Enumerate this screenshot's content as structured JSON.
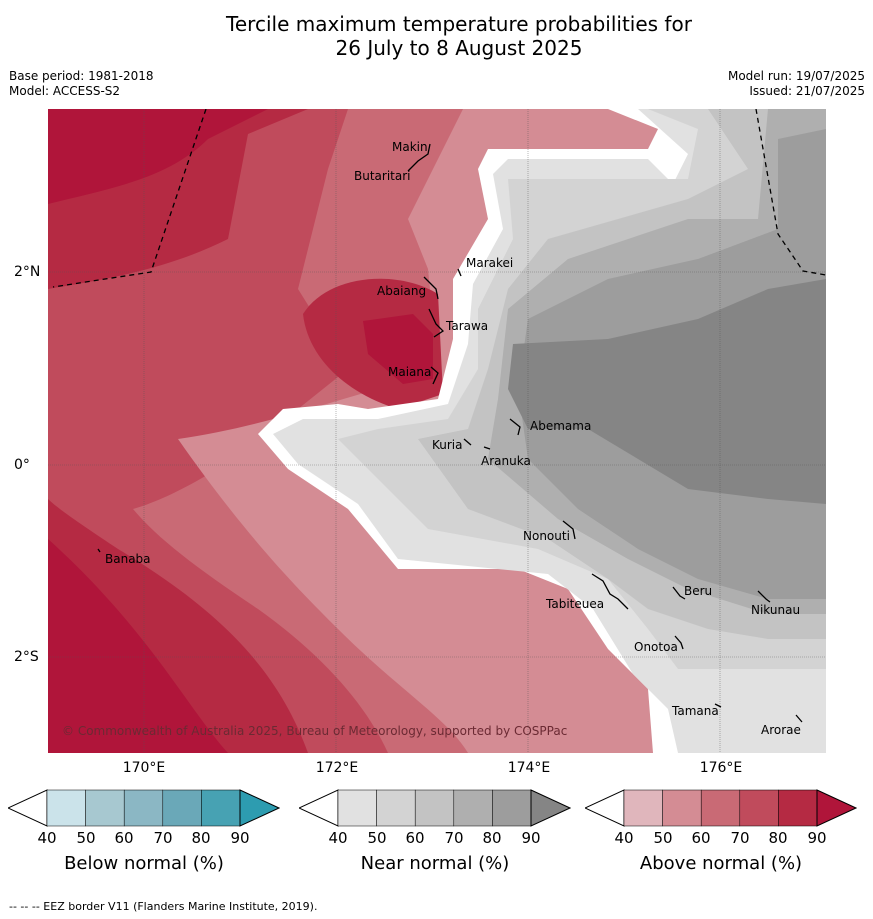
{
  "header": {
    "title_line1": "Tercile maximum temperature probabilities for",
    "title_line2": "26 July to 8 August 2025",
    "base_period": "Base period: 1981-2018",
    "model": "Model: ACCESS-S2",
    "model_run": "Model run: 19/07/2025",
    "issued": "Issued: 21/07/2025"
  },
  "map": {
    "lon_labels": [
      "170°E",
      "172°E",
      "174°E",
      "176°E"
    ],
    "lat_labels": [
      "2°N",
      "0°",
      "2°S"
    ],
    "places": [
      {
        "name": "Makin"
      },
      {
        "name": "Butaritari"
      },
      {
        "name": "Marakei"
      },
      {
        "name": "Abaiang"
      },
      {
        "name": "Tarawa"
      },
      {
        "name": "Maiana"
      },
      {
        "name": "Abemama"
      },
      {
        "name": "Kuria"
      },
      {
        "name": "Aranuka"
      },
      {
        "name": "Banaba"
      },
      {
        "name": "Nonouti"
      },
      {
        "name": "Beru"
      },
      {
        "name": "Tabiteuea"
      },
      {
        "name": "Nikunau"
      },
      {
        "name": "Onotoa"
      },
      {
        "name": "Tamana"
      },
      {
        "name": "Arorae"
      }
    ],
    "copyright": "© Commonwealth of Australia 2025, Bureau of Meteorology, supported by COSPPac",
    "colors": {
      "above": [
        "#e0b6bc",
        "#d48c94",
        "#c96a75",
        "#c04b5c",
        "#b52a43",
        "#b0153a"
      ],
      "near": [
        "#e1e1e1",
        "#d3d3d3",
        "#c3c3c3",
        "#afafaf",
        "#9d9d9d",
        "#858585"
      ],
      "below": [
        "#cbe3ea",
        "#a7c8d0",
        "#8bb7c4",
        "#6aa8b8",
        "#47a2b3",
        "#2d9cb0"
      ]
    }
  },
  "colorbars": [
    {
      "title": "Below normal (%)",
      "ticks": [
        "40",
        "50",
        "60",
        "70",
        "80",
        "90"
      ]
    },
    {
      "title": "Near normal (%)",
      "ticks": [
        "40",
        "50",
        "60",
        "70",
        "80",
        "90"
      ]
    },
    {
      "title": "Above normal (%)",
      "ticks": [
        "40",
        "50",
        "60",
        "70",
        "80",
        "90"
      ]
    }
  ],
  "footer": "--  --  -- EEZ border V11 (Flanders Marine Institute, 2019)."
}
